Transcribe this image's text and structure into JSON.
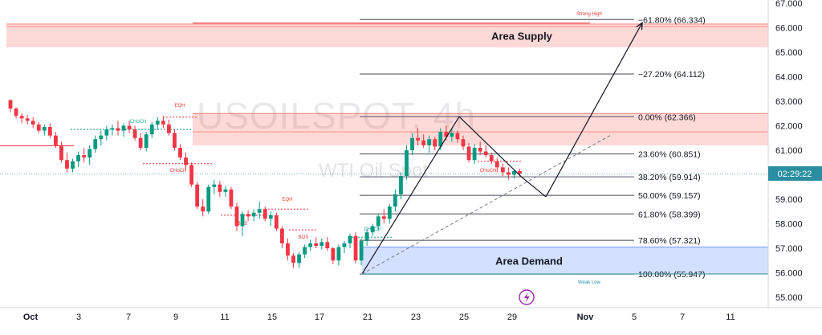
{
  "chart_data": {
    "type": "candlestick",
    "watermark": {
      "symbol": "USOILSPOT, 4h",
      "name": "WTI Oil Spot"
    },
    "y_axis": {
      "ylim": [
        54.7,
        67.2
      ],
      "ticks": [
        "55.000",
        "56.000",
        "57.000",
        "58.000",
        "59.000",
        "60.000",
        "61.000",
        "62.000",
        "63.000",
        "64.000",
        "65.000",
        "66.000",
        "67.000"
      ]
    },
    "x_axis": {
      "ticks": [
        "Oct",
        "3",
        "7",
        "9",
        "11",
        "15",
        "17",
        "21",
        "23",
        "25",
        "29",
        "Nov",
        "5",
        "7",
        "11"
      ]
    },
    "current_price": {
      "value": 60.05,
      "label": "02:29:22",
      "color": "#2a8ea0"
    },
    "fib_levels": [
      {
        "ratio": -61.8,
        "price": 66.334,
        "label": "−61.80% (66.334)"
      },
      {
        "ratio": -27.2,
        "price": 64.112,
        "label": "−27.20% (64.112)"
      },
      {
        "ratio": 0,
        "price": 62.366,
        "label": "0.00% (62.366)"
      },
      {
        "ratio": 23.6,
        "price": 60.851,
        "label": "23.60% (60.851)"
      },
      {
        "ratio": 38.2,
        "price": 59.914,
        "label": "38.20% (59.914)"
      },
      {
        "ratio": 50.0,
        "price": 59.157,
        "label": "50.00% (59.157)"
      },
      {
        "ratio": 61.8,
        "price": 58.399,
        "label": "61.80% (58.399)"
      },
      {
        "ratio": 78.6,
        "price": 57.321,
        "label": "78.60% (57.321)"
      },
      {
        "ratio": 100.0,
        "price": 55.947,
        "label": "100.00% (55.947)"
      }
    ],
    "zones": [
      {
        "label": "Area Supply",
        "top": 66.15,
        "bottom": 65.2,
        "color": "#f44336"
      },
      {
        "label": "",
        "top": 62.5,
        "bottom": 61.2,
        "color": "#f44336"
      },
      {
        "label": "Area Demand",
        "top": 57.05,
        "bottom": 55.95,
        "color": "#2962ff"
      }
    ],
    "annotations": [
      {
        "text": "Strong High",
        "color": "#e53935"
      },
      {
        "text": "Weak Low",
        "color": "#2a8ea0"
      },
      {
        "text": "EQH",
        "color": "#e53935"
      },
      {
        "text": "EQH",
        "color": "#e53935"
      },
      {
        "text": "CHoCH",
        "color": "#26a69a"
      },
      {
        "text": "CHoCH",
        "color": "#e53935"
      },
      {
        "text": "CHoCH",
        "color": "#26a69a"
      },
      {
        "text": "CHoCH",
        "color": "#e53935"
      },
      {
        "text": "BOS",
        "color": "#e53935"
      },
      {
        "text": "BOS",
        "color": "#e53935"
      }
    ],
    "projection": [
      {
        "date_x": 451,
        "price": 55.95
      },
      {
        "date_x": 572,
        "price": 62.37
      },
      {
        "date_x": 650,
        "price": 59.9
      },
      {
        "date_x": 680,
        "price": 59.1
      },
      {
        "date_x": 800,
        "price": 66.2
      }
    ],
    "candles": [
      [
        63.05,
        63.02,
        62.55,
        62.7
      ],
      [
        62.7,
        62.75,
        62.3,
        62.4
      ],
      [
        62.4,
        62.5,
        62.1,
        62.3
      ],
      [
        62.3,
        62.45,
        62.05,
        62.2
      ],
      [
        62.2,
        62.35,
        61.9,
        62.05
      ],
      [
        62.05,
        62.15,
        61.7,
        61.8
      ],
      [
        61.8,
        62.05,
        61.6,
        61.95
      ],
      [
        61.95,
        62.1,
        61.5,
        61.6
      ],
      [
        61.6,
        61.75,
        61.1,
        61.2
      ],
      [
        61.2,
        61.35,
        60.5,
        60.6
      ],
      [
        60.6,
        60.9,
        60.1,
        60.25
      ],
      [
        60.25,
        60.65,
        60.1,
        60.55
      ],
      [
        60.55,
        60.95,
        60.3,
        60.8
      ],
      [
        60.8,
        61.1,
        60.5,
        60.7
      ],
      [
        60.7,
        61.2,
        60.4,
        61.05
      ],
      [
        61.05,
        61.6,
        60.9,
        61.45
      ],
      [
        61.45,
        61.8,
        61.2,
        61.6
      ],
      [
        61.6,
        62.0,
        61.4,
        61.85
      ],
      [
        61.85,
        62.05,
        61.6,
        61.9
      ],
      [
        61.9,
        62.2,
        61.6,
        61.8
      ],
      [
        61.8,
        62.1,
        61.55,
        62.0
      ],
      [
        62.0,
        62.2,
        61.7,
        61.85
      ],
      [
        61.85,
        62.0,
        61.4,
        61.5
      ],
      [
        61.5,
        61.7,
        61.0,
        61.1
      ],
      [
        61.1,
        61.75,
        60.95,
        61.65
      ],
      [
        61.65,
        62.15,
        61.5,
        62.05
      ],
      [
        62.05,
        62.35,
        61.85,
        62.2
      ],
      [
        62.2,
        62.4,
        61.9,
        62.05
      ],
      [
        62.05,
        62.25,
        61.6,
        61.7
      ],
      [
        61.7,
        61.85,
        61.0,
        61.1
      ],
      [
        61.1,
        61.25,
        60.6,
        60.7
      ],
      [
        60.7,
        60.9,
        60.2,
        60.4
      ],
      [
        60.4,
        60.5,
        59.5,
        59.6
      ],
      [
        59.6,
        59.7,
        58.6,
        58.7
      ],
      [
        58.7,
        59.0,
        58.3,
        58.5
      ],
      [
        58.5,
        59.6,
        58.4,
        59.5
      ],
      [
        59.5,
        59.8,
        59.2,
        59.6
      ],
      [
        59.6,
        59.75,
        59.1,
        59.3
      ],
      [
        59.3,
        59.55,
        59.1,
        59.4
      ],
      [
        59.4,
        59.5,
        58.6,
        58.7
      ],
      [
        58.7,
        58.85,
        57.7,
        57.9
      ],
      [
        57.9,
        58.5,
        57.5,
        58.4
      ],
      [
        58.4,
        58.55,
        58.1,
        58.3
      ],
      [
        58.3,
        58.6,
        58.1,
        58.45
      ],
      [
        58.45,
        58.9,
        58.2,
        58.6
      ],
      [
        58.6,
        58.7,
        58.1,
        58.2
      ],
      [
        58.2,
        58.5,
        57.9,
        58.35
      ],
      [
        58.35,
        58.45,
        57.7,
        57.8
      ],
      [
        57.8,
        57.9,
        57.0,
        57.2
      ],
      [
        57.2,
        57.4,
        56.5,
        56.7
      ],
      [
        56.7,
        56.8,
        56.2,
        56.4
      ],
      [
        56.4,
        56.85,
        56.2,
        56.75
      ],
      [
        56.75,
        57.15,
        56.6,
        57.05
      ],
      [
        57.05,
        57.35,
        56.9,
        57.2
      ],
      [
        57.2,
        57.45,
        57.0,
        57.1
      ],
      [
        57.1,
        57.4,
        56.95,
        57.25
      ],
      [
        57.25,
        57.45,
        56.9,
        57.0
      ],
      [
        57.0,
        57.05,
        56.35,
        56.5
      ],
      [
        56.5,
        57.15,
        56.3,
        57.05
      ],
      [
        57.05,
        57.3,
        56.8,
        57.2
      ],
      [
        57.2,
        57.6,
        57.0,
        57.5
      ],
      [
        57.5,
        57.65,
        56.4,
        56.5
      ],
      [
        56.5,
        57.4,
        56.3,
        57.3
      ],
      [
        57.3,
        57.8,
        57.1,
        57.65
      ],
      [
        57.65,
        58.0,
        57.5,
        57.9
      ],
      [
        57.9,
        58.4,
        57.7,
        58.3
      ],
      [
        58.3,
        58.6,
        58.0,
        58.2
      ],
      [
        58.2,
        58.8,
        58.0,
        58.7
      ],
      [
        58.7,
        59.4,
        58.5,
        59.2
      ],
      [
        59.2,
        60.1,
        59.0,
        59.95
      ],
      [
        59.95,
        61.2,
        59.8,
        61.0
      ],
      [
        61.0,
        61.7,
        60.8,
        61.5
      ],
      [
        61.5,
        61.9,
        61.2,
        61.4
      ],
      [
        61.4,
        61.65,
        61.1,
        61.2
      ],
      [
        61.2,
        61.6,
        60.9,
        61.45
      ],
      [
        61.45,
        61.55,
        61.0,
        61.15
      ],
      [
        61.15,
        61.9,
        61.0,
        61.75
      ],
      [
        61.75,
        62.0,
        61.4,
        61.55
      ],
      [
        61.55,
        61.85,
        61.35,
        61.7
      ],
      [
        61.7,
        61.8,
        61.3,
        61.45
      ],
      [
        61.45,
        61.6,
        61.0,
        61.15
      ],
      [
        61.15,
        61.3,
        60.5,
        60.6
      ],
      [
        60.6,
        61.25,
        60.45,
        61.1
      ],
      [
        61.1,
        61.35,
        60.8,
        60.95
      ],
      [
        60.95,
        61.2,
        60.7,
        60.8
      ],
      [
        60.8,
        60.9,
        60.45,
        60.55
      ],
      [
        60.55,
        60.7,
        60.1,
        60.3
      ],
      [
        60.3,
        60.45,
        59.95,
        60.1
      ],
      [
        60.1,
        60.3,
        59.8,
        60.0
      ],
      [
        60.0,
        60.2,
        59.85,
        60.15
      ],
      [
        60.15,
        60.25,
        59.9,
        60.05
      ]
    ]
  }
}
